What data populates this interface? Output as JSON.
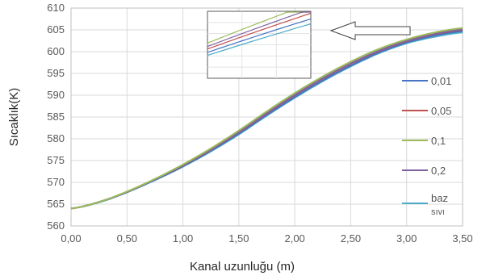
{
  "chart_data": {
    "type": "line",
    "title": "",
    "xlabel": "Kanal uzunluğu (m)",
    "ylabel": "Sıcaklık(K)",
    "xlim": [
      0,
      3.5
    ],
    "ylim": [
      560,
      610
    ],
    "x_ticks": [
      "0,00",
      "0,50",
      "1,00",
      "1,50",
      "2,00",
      "2,50",
      "3,00",
      "3,50"
    ],
    "y_ticks": [
      "560",
      "565",
      "570",
      "575",
      "580",
      "585",
      "590",
      "595",
      "600",
      "605",
      "610"
    ],
    "grid": true,
    "legend_position": "right",
    "inset": "zoomed view of the curve ends near x = 2.0–2.2 m, indicated by an arrow",
    "x": [
      0,
      0.25,
      0.5,
      0.75,
      1.0,
      1.25,
      1.5,
      1.75,
      2.0,
      2.25,
      2.5,
      2.75,
      3.0,
      3.25,
      3.5
    ],
    "series": [
      {
        "name": "0,01",
        "color": "#4472C4",
        "values": [
          564.0,
          565.5,
          567.8,
          570.6,
          573.7,
          577.3,
          581.2,
          585.5,
          589.6,
          593.4,
          596.8,
          599.8,
          602.1,
          603.7,
          604.7
        ]
      },
      {
        "name": "0,05",
        "color": "#C0504D",
        "values": [
          564.0,
          565.5,
          567.8,
          570.7,
          573.9,
          577.5,
          581.5,
          585.8,
          590.0,
          593.8,
          597.2,
          600.1,
          602.4,
          604.0,
          605.0
        ]
      },
      {
        "name": "0,1",
        "color": "#9BBB59",
        "values": [
          564.0,
          565.5,
          567.9,
          570.8,
          574.1,
          577.8,
          581.9,
          586.3,
          590.5,
          594.3,
          597.7,
          600.6,
          602.8,
          604.4,
          605.4
        ]
      },
      {
        "name": "0,2",
        "color": "#8064A2",
        "values": [
          564.0,
          565.5,
          567.8,
          570.7,
          574.0,
          577.6,
          581.6,
          585.9,
          590.1,
          593.9,
          597.3,
          600.2,
          602.5,
          604.1,
          605.1
        ]
      },
      {
        "name": "baz sıvı",
        "color": "#4BACC6",
        "values": [
          564.0,
          565.4,
          567.7,
          570.5,
          573.6,
          577.1,
          581.0,
          585.3,
          589.4,
          593.2,
          596.6,
          599.6,
          601.9,
          603.4,
          604.4
        ]
      }
    ]
  }
}
